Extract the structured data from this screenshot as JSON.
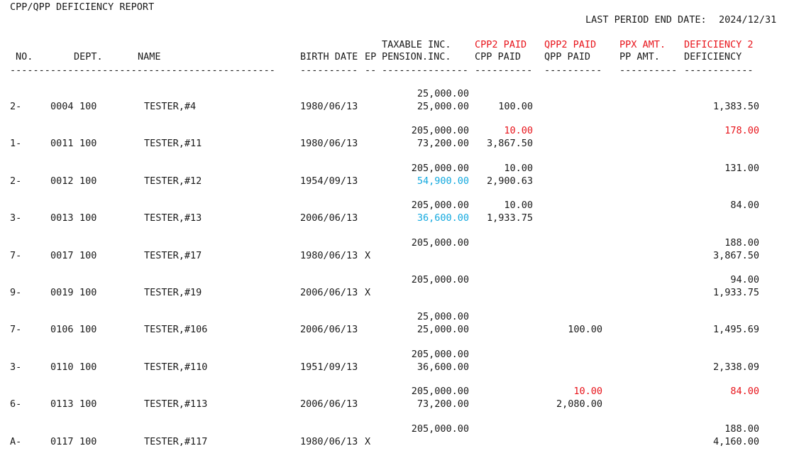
{
  "report": {
    "title": "CPP/QPP DEFICIENCY REPORT",
    "period_label": "LAST PERIOD END DATE:",
    "period_value": "2024/12/31"
  },
  "colors": {
    "text": "#1a1a1a",
    "red": "#e8141b",
    "cyan": "#13a9df"
  },
  "headers": {
    "no": "NO.",
    "dept": "DEPT.",
    "name": "NAME",
    "birth": "BIRTH DATE",
    "ep": "EP",
    "taxable_top": "TAXABLE INC.",
    "pension_bottom": "PENSION.INC.",
    "cpp2_top": "CPP2 PAID",
    "cpp_bottom": "CPP PAID",
    "qpp2_top": "QPP2 PAID",
    "qpp_bottom": "QPP PAID",
    "ppx_top": "PPX AMT.",
    "pp_bottom": "PP AMT.",
    "def2_top": "DEFICIENCY 2",
    "def_bottom": "DEFICIENCY"
  },
  "dividers": {
    "d1": "----------------------------------------------",
    "d2": "----------",
    "d3": "--",
    "d4": "---------------",
    "d5": "----------",
    "d6": "----------",
    "d7": "----------",
    "d8": "------------"
  },
  "rows": [
    {
      "no": "2-",
      "id": "0004",
      "dept": "100",
      "name": "TESTER,#4",
      "birth": "1980/06/13",
      "ep": "",
      "taxable": "25,000.00",
      "pension": "25,000.00",
      "pension_color": "",
      "cpp2": "",
      "cpp2_color": "",
      "cpp": "100.00",
      "qpp2": "",
      "qpp2_color": "",
      "qpp": "",
      "def2": "",
      "def2_color": "",
      "def": "1,383.50"
    },
    {
      "no": "1-",
      "id": "0011",
      "dept": "100",
      "name": "TESTER,#11",
      "birth": "1980/06/13",
      "ep": "",
      "taxable": "205,000.00",
      "pension": "73,200.00",
      "pension_color": "",
      "cpp2": "10.00",
      "cpp2_color": "red",
      "cpp": "3,867.50",
      "qpp2": "",
      "qpp2_color": "",
      "qpp": "",
      "def2": "178.00",
      "def2_color": "red",
      "def": ""
    },
    {
      "no": "2-",
      "id": "0012",
      "dept": "100",
      "name": "TESTER,#12",
      "birth": "1954/09/13",
      "ep": "",
      "taxable": "205,000.00",
      "pension": "54,900.00",
      "pension_color": "cyan",
      "cpp2": "10.00",
      "cpp2_color": "",
      "cpp": "2,900.63",
      "qpp2": "",
      "qpp2_color": "",
      "qpp": "",
      "def2": "131.00",
      "def2_color": "",
      "def": ""
    },
    {
      "no": "3-",
      "id": "0013",
      "dept": "100",
      "name": "TESTER,#13",
      "birth": "2006/06/13",
      "ep": "",
      "taxable": "205,000.00",
      "pension": "36,600.00",
      "pension_color": "cyan",
      "cpp2": "10.00",
      "cpp2_color": "",
      "cpp": "1,933.75",
      "qpp2": "",
      "qpp2_color": "",
      "qpp": "",
      "def2": "84.00",
      "def2_color": "",
      "def": ""
    },
    {
      "no": "7-",
      "id": "0017",
      "dept": "100",
      "name": "TESTER,#17",
      "birth": "1980/06/13",
      "ep": "X",
      "taxable": "205,000.00",
      "pension": "",
      "pension_color": "",
      "cpp2": "",
      "cpp2_color": "",
      "cpp": "",
      "qpp2": "",
      "qpp2_color": "",
      "qpp": "",
      "def2": "188.00",
      "def2_color": "",
      "def": "3,867.50"
    },
    {
      "no": "9-",
      "id": "0019",
      "dept": "100",
      "name": "TESTER,#19",
      "birth": "2006/06/13",
      "ep": "X",
      "taxable": "205,000.00",
      "pension": "",
      "pension_color": "",
      "cpp2": "",
      "cpp2_color": "",
      "cpp": "",
      "qpp2": "",
      "qpp2_color": "",
      "qpp": "",
      "def2": "94.00",
      "def2_color": "",
      "def": "1,933.75"
    },
    {
      "no": "7-",
      "id": "0106",
      "dept": "100",
      "name": "TESTER,#106",
      "birth": "2006/06/13",
      "ep": "",
      "taxable": "25,000.00",
      "pension": "25,000.00",
      "pension_color": "",
      "cpp2": "",
      "cpp2_color": "",
      "cpp": "",
      "qpp2": "",
      "qpp2_color": "",
      "qpp": "100.00",
      "def2": "",
      "def2_color": "",
      "def": "1,495.69"
    },
    {
      "no": "3-",
      "id": "0110",
      "dept": "100",
      "name": "TESTER,#110",
      "birth": "1951/09/13",
      "ep": "",
      "taxable": "205,000.00",
      "pension": "36,600.00",
      "pension_color": "",
      "cpp2": "",
      "cpp2_color": "",
      "cpp": "",
      "qpp2": "",
      "qpp2_color": "",
      "qpp": "",
      "def2": "",
      "def2_color": "",
      "def": "2,338.09"
    },
    {
      "no": "6-",
      "id": "0113",
      "dept": "100",
      "name": "TESTER,#113",
      "birth": "2006/06/13",
      "ep": "",
      "taxable": "205,000.00",
      "pension": "73,200.00",
      "pension_color": "",
      "cpp2": "",
      "cpp2_color": "",
      "cpp": "",
      "qpp2": "10.00",
      "qpp2_color": "red",
      "qpp": "2,080.00",
      "def2": "84.00",
      "def2_color": "red",
      "def": ""
    },
    {
      "no": "A-",
      "id": "0117",
      "dept": "100",
      "name": "TESTER,#117",
      "birth": "1980/06/13",
      "ep": "X",
      "taxable": "205,000.00",
      "pension": "",
      "pension_color": "",
      "cpp2": "",
      "cpp2_color": "",
      "cpp": "",
      "qpp2": "",
      "qpp2_color": "",
      "qpp": "",
      "def2": "188.00",
      "def2_color": "",
      "def": "4,160.00"
    }
  ]
}
